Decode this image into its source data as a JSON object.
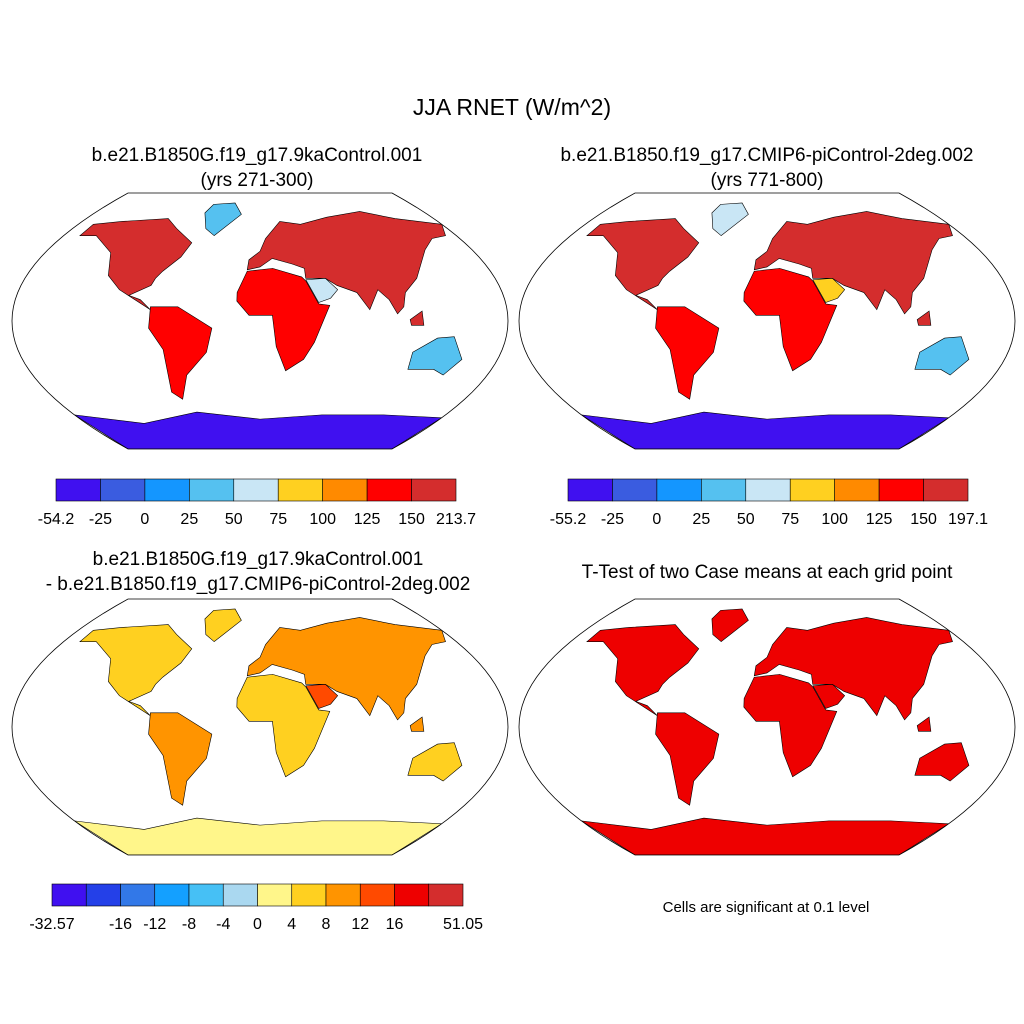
{
  "title": "JJA RNET (W/m^2)",
  "panels": [
    {
      "title1": "b.e21.B1850G.f19_g17.9kaControl.001",
      "title2": "(yrs 271-300)",
      "colors": {
        "na": "#d42d2d",
        "greenland": "#55c1f0",
        "sa": "#ff0000",
        "africa": "#ff0000",
        "eurasia": "#d42d2d",
        "arabia": "#c9e6f5",
        "australia": "#55c1f0",
        "borneo": "#d42d2d",
        "antarctica": "#4010f0"
      }
    },
    {
      "title1": "b.e21.B1850.f19_g17.CMIP6-piControl-2deg.002",
      "title2": "(yrs 771-800)",
      "colors": {
        "na": "#d42d2d",
        "greenland": "#c9e6f5",
        "sa": "#ff0000",
        "africa": "#ff0000",
        "eurasia": "#d42d2d",
        "arabia": "#ffd020",
        "australia": "#55c1f0",
        "borneo": "#d42d2d",
        "antarctica": "#4010f0"
      }
    },
    {
      "title1": "b.e21.B1850G.f19_g17.9kaControl.001",
      "title2": "- b.e21.B1850.f19_g17.CMIP6-piControl-2deg.002",
      "colors": {
        "na": "#ffd020",
        "greenland": "#ffd020",
        "sa": "#ff9400",
        "africa": "#ffd020",
        "eurasia": "#ff9400",
        "arabia": "#ff4a00",
        "australia": "#ffd020",
        "borneo": "#ff9400",
        "antarctica": "#fff68a"
      }
    },
    {
      "title1": "T-Test of two Case means at each grid point",
      "title2": "",
      "colors": {
        "na": "#ee0000",
        "greenland": "#ee0000",
        "sa": "#ee0000",
        "africa": "#ee0000",
        "eurasia": "#ee0000",
        "arabia": "#ee0000",
        "australia": "#ee0000",
        "borneo": "#ee0000",
        "antarctica": "#ee0000"
      }
    }
  ],
  "colorbars": [
    {
      "colors": [
        "#4010f0",
        "#3a5ce0",
        "#1496ff",
        "#55c1f0",
        "#c9e6f5",
        "#ffd020",
        "#ff8a00",
        "#ff0000",
        "#d42d2d"
      ],
      "labels": [
        {
          "b": 0,
          "t": "-54.2"
        },
        {
          "b": 1,
          "t": "-25"
        },
        {
          "b": 2,
          "t": "0"
        },
        {
          "b": 3,
          "t": "25"
        },
        {
          "b": 4,
          "t": "50"
        },
        {
          "b": 5,
          "t": "75"
        },
        {
          "b": 6,
          "t": "100"
        },
        {
          "b": 7,
          "t": "125"
        },
        {
          "b": 8,
          "t": "150"
        },
        {
          "b": 9,
          "t": "213.7"
        }
      ]
    },
    {
      "colors": [
        "#4010f0",
        "#3a5ce0",
        "#1496ff",
        "#55c1f0",
        "#c9e6f5",
        "#ffd020",
        "#ff8a00",
        "#ff0000",
        "#d42d2d"
      ],
      "labels": [
        {
          "b": 0,
          "t": "-55.2"
        },
        {
          "b": 1,
          "t": "-25"
        },
        {
          "b": 2,
          "t": "0"
        },
        {
          "b": 3,
          "t": "25"
        },
        {
          "b": 4,
          "t": "50"
        },
        {
          "b": 5,
          "t": "75"
        },
        {
          "b": 6,
          "t": "100"
        },
        {
          "b": 7,
          "t": "125"
        },
        {
          "b": 8,
          "t": "150"
        },
        {
          "b": 9,
          "t": "197.1"
        }
      ]
    },
    {
      "colors": [
        "#4010f0",
        "#2440e8",
        "#3278e8",
        "#14a0ff",
        "#46c0f5",
        "#aad8f0",
        "#fff68a",
        "#ffd020",
        "#ff9400",
        "#ff4a00",
        "#ee0000",
        "#d42d2d"
      ],
      "labels": [
        {
          "b": 0,
          "t": "-32.57"
        },
        {
          "b": 2,
          "t": "-16"
        },
        {
          "b": 3,
          "t": "-12"
        },
        {
          "b": 4,
          "t": "-8"
        },
        {
          "b": 5,
          "t": "-4"
        },
        {
          "b": 6,
          "t": "0"
        },
        {
          "b": 7,
          "t": "4"
        },
        {
          "b": 8,
          "t": "8"
        },
        {
          "b": 9,
          "t": "12"
        },
        {
          "b": 10,
          "t": "16"
        },
        {
          "b": 12,
          "t": "51.05"
        }
      ]
    }
  ],
  "note": "Cells are significant at 0.1 level"
}
